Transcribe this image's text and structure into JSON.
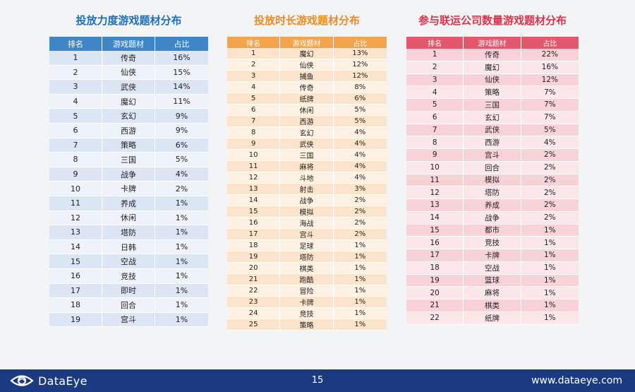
{
  "panels": [
    {
      "title": "投放力度游戏题材分布",
      "headers": [
        "排名",
        "游戏题材",
        "占比"
      ],
      "rows": [
        [
          "1",
          "传奇",
          "16%"
        ],
        [
          "2",
          "仙侠",
          "15%"
        ],
        [
          "3",
          "武侠",
          "14%"
        ],
        [
          "4",
          "魔幻",
          "11%"
        ],
        [
          "5",
          "玄幻",
          "9%"
        ],
        [
          "6",
          "西游",
          "9%"
        ],
        [
          "7",
          "策略",
          "6%"
        ],
        [
          "8",
          "三国",
          "5%"
        ],
        [
          "9",
          "战争",
          "4%"
        ],
        [
          "10",
          "卡牌",
          "2%"
        ],
        [
          "11",
          "养成",
          "1%"
        ],
        [
          "12",
          "休闲",
          "1%"
        ],
        [
          "13",
          "塔防",
          "1%"
        ],
        [
          "14",
          "日韩",
          "1%"
        ],
        [
          "15",
          "空战",
          "1%"
        ],
        [
          "16",
          "竞技",
          "1%"
        ],
        [
          "17",
          "即时",
          "1%"
        ],
        [
          "18",
          "回合",
          "1%"
        ],
        [
          "19",
          "宫斗",
          "1%"
        ]
      ]
    },
    {
      "title": "投放时长游戏题材分布",
      "headers": [
        "排名",
        "游戏题材",
        "占比"
      ],
      "rows": [
        [
          "1",
          "魔幻",
          "13%"
        ],
        [
          "2",
          "仙侠",
          "12%"
        ],
        [
          "3",
          "捕鱼",
          "12%"
        ],
        [
          "4",
          "传奇",
          "8%"
        ],
        [
          "5",
          "纸牌",
          "6%"
        ],
        [
          "6",
          "休闲",
          "5%"
        ],
        [
          "7",
          "西游",
          "5%"
        ],
        [
          "8",
          "玄幻",
          "4%"
        ],
        [
          "9",
          "武侠",
          "4%"
        ],
        [
          "10",
          "三国",
          "4%"
        ],
        [
          "11",
          "麻将",
          "4%"
        ],
        [
          "12",
          "斗地",
          "4%"
        ],
        [
          "13",
          "射击",
          "3%"
        ],
        [
          "14",
          "战争",
          "2%"
        ],
        [
          "15",
          "模拟",
          "2%"
        ],
        [
          "16",
          "海战",
          "2%"
        ],
        [
          "17",
          "宫斗",
          "2%"
        ],
        [
          "18",
          "足球",
          "1%"
        ],
        [
          "19",
          "塔防",
          "1%"
        ],
        [
          "20",
          "棋类",
          "1%"
        ],
        [
          "21",
          "跑酷",
          "1%"
        ],
        [
          "22",
          "冒险",
          "1%"
        ],
        [
          "23",
          "卡牌",
          "1%"
        ],
        [
          "24",
          "竞技",
          "1%"
        ],
        [
          "25",
          "策略",
          "1%"
        ]
      ]
    },
    {
      "title": "参与联运公司数量游戏题材分布",
      "headers": [
        "排名",
        "游戏题材",
        "占比"
      ],
      "rows": [
        [
          "1",
          "传奇",
          "22%"
        ],
        [
          "2",
          "魔幻",
          "16%"
        ],
        [
          "3",
          "仙侠",
          "12%"
        ],
        [
          "4",
          "策略",
          "7%"
        ],
        [
          "5",
          "三国",
          "7%"
        ],
        [
          "6",
          "玄幻",
          "7%"
        ],
        [
          "7",
          "武侠",
          "5%"
        ],
        [
          "8",
          "西游",
          "4%"
        ],
        [
          "9",
          "宫斗",
          "2%"
        ],
        [
          "10",
          "回合",
          "2%"
        ],
        [
          "11",
          "模拟",
          "2%"
        ],
        [
          "12",
          "塔防",
          "2%"
        ],
        [
          "13",
          "养成",
          "2%"
        ],
        [
          "14",
          "战争",
          "2%"
        ],
        [
          "15",
          "都市",
          "1%"
        ],
        [
          "16",
          "竞技",
          "1%"
        ],
        [
          "17",
          "卡牌",
          "1%"
        ],
        [
          "18",
          "空战",
          "1%"
        ],
        [
          "19",
          "篮球",
          "1%"
        ],
        [
          "20",
          "麻将",
          "1%"
        ],
        [
          "21",
          "棋类",
          "1%"
        ],
        [
          "22",
          "纸牌",
          "1%"
        ]
      ]
    }
  ],
  "footer": {
    "logo_text": "DataEye",
    "page_number": "15",
    "website": "www.dataeye.com"
  },
  "colors": {
    "blue": "#3f86c8",
    "orange": "#f3a34c",
    "red": "#e2576c",
    "footer": "#1b3a80"
  }
}
